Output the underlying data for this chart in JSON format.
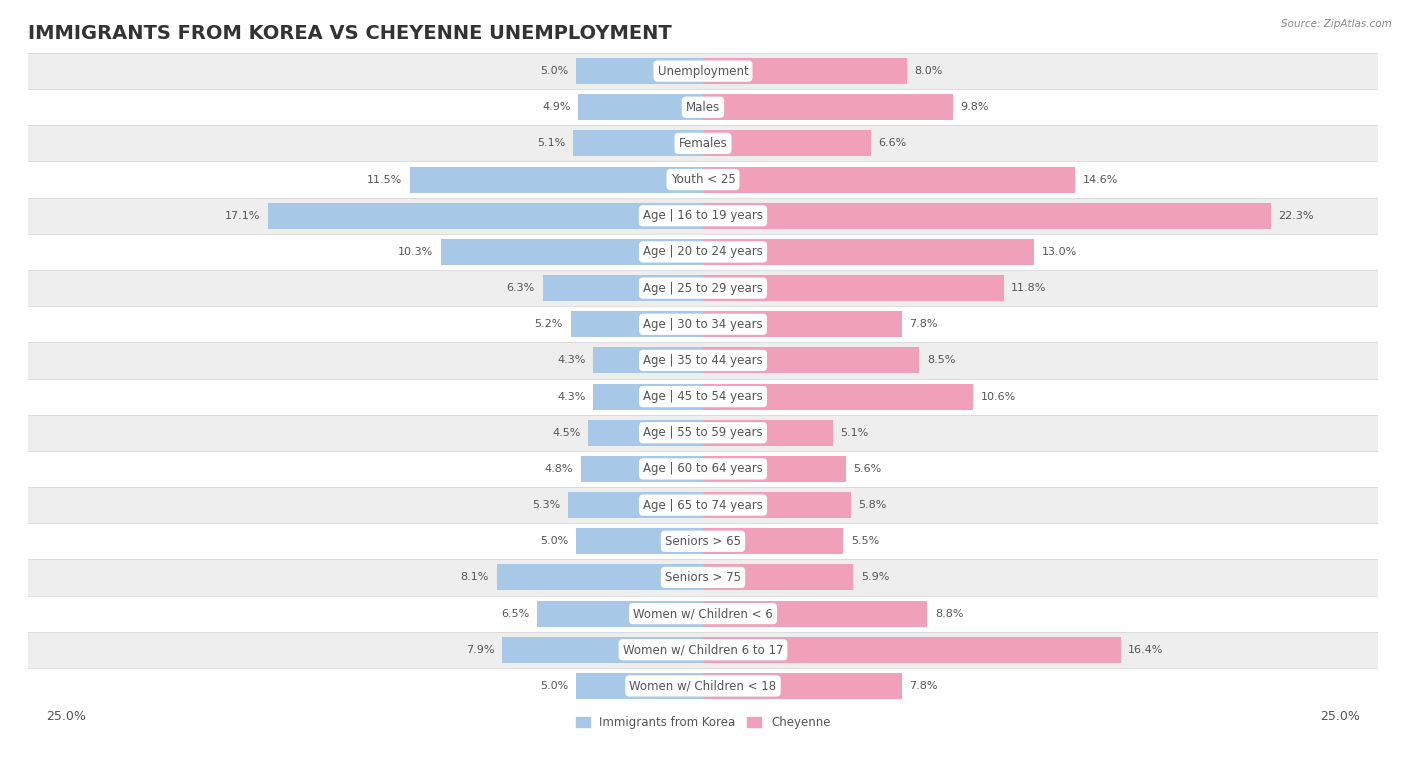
{
  "title": "IMMIGRANTS FROM KOREA VS CHEYENNE UNEMPLOYMENT",
  "source": "Source: ZipAtlas.com",
  "categories": [
    "Unemployment",
    "Males",
    "Females",
    "Youth < 25",
    "Age | 16 to 19 years",
    "Age | 20 to 24 years",
    "Age | 25 to 29 years",
    "Age | 30 to 34 years",
    "Age | 35 to 44 years",
    "Age | 45 to 54 years",
    "Age | 55 to 59 years",
    "Age | 60 to 64 years",
    "Age | 65 to 74 years",
    "Seniors > 65",
    "Seniors > 75",
    "Women w/ Children < 6",
    "Women w/ Children 6 to 17",
    "Women w/ Children < 18"
  ],
  "korea_values": [
    5.0,
    4.9,
    5.1,
    11.5,
    17.1,
    10.3,
    6.3,
    5.2,
    4.3,
    4.3,
    4.5,
    4.8,
    5.3,
    5.0,
    8.1,
    6.5,
    7.9,
    5.0
  ],
  "cheyenne_values": [
    8.0,
    9.8,
    6.6,
    14.6,
    22.3,
    13.0,
    11.8,
    7.8,
    8.5,
    10.6,
    5.1,
    5.6,
    5.8,
    5.5,
    5.9,
    8.8,
    16.4,
    7.8
  ],
  "korea_color": "#a8c8e8",
  "cheyenne_color": "#f0a0b8",
  "row_bg_gray": "#eeeeee",
  "row_bg_white": "#ffffff",
  "row_separator": "#d8d8d8",
  "label_pill_color": "#ffffff",
  "label_text_color": "#555555",
  "value_text_color": "#555555",
  "xlim": 25.0,
  "bar_height": 0.72,
  "legend_korea": "Immigrants from Korea",
  "legend_cheyenne": "Cheyenne",
  "title_fontsize": 14,
  "label_fontsize": 8.5,
  "value_fontsize": 8.0,
  "axis_tick_fontsize": 9.0
}
